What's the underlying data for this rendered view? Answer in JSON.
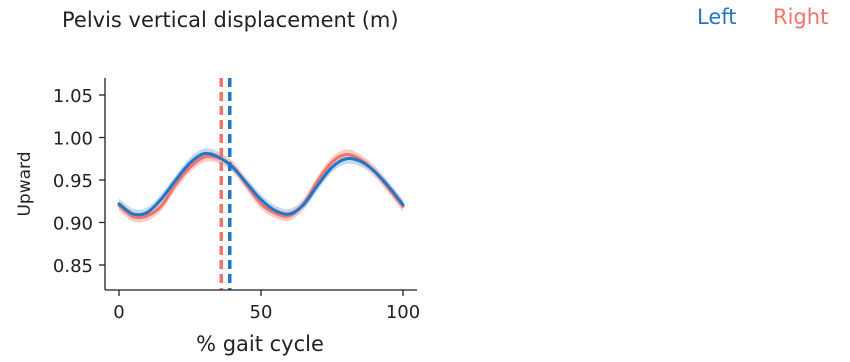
{
  "chart_data": {
    "type": "line",
    "title": "Pelvis vertical displacement (m)",
    "xlabel": "% gait cycle",
    "ylabel": "Upward",
    "xlim": [
      -5,
      105
    ],
    "ylim": [
      0.82,
      1.07
    ],
    "xticks": [
      0,
      50,
      100
    ],
    "xtick_labels": [
      "0",
      "50",
      "100"
    ],
    "yticks": [
      0.85,
      0.9,
      0.95,
      1.0,
      1.05
    ],
    "ytick_labels": [
      "0.85",
      "0.90",
      "0.95",
      "1.00",
      "1.05"
    ],
    "grid": false,
    "legend_position": "top-right",
    "x": [
      0,
      5,
      10,
      15,
      20,
      25,
      30,
      35,
      40,
      45,
      50,
      55,
      60,
      65,
      70,
      75,
      80,
      85,
      90,
      95,
      100
    ],
    "series": [
      {
        "name": "Left",
        "color": "#1f77c8",
        "band_color": "#a9cdee",
        "values": [
          0.922,
          0.91,
          0.912,
          0.928,
          0.95,
          0.97,
          0.981,
          0.977,
          0.965,
          0.946,
          0.927,
          0.914,
          0.91,
          0.921,
          0.944,
          0.965,
          0.975,
          0.972,
          0.96,
          0.942,
          0.921
        ],
        "band": 0.006,
        "event_x": 39
      },
      {
        "name": "Right",
        "color": "#f2726c",
        "band_color": "#f7bcb8",
        "values": [
          0.92,
          0.907,
          0.908,
          0.92,
          0.945,
          0.965,
          0.977,
          0.976,
          0.966,
          0.944,
          0.922,
          0.911,
          0.908,
          0.922,
          0.949,
          0.971,
          0.98,
          0.974,
          0.96,
          0.94,
          0.919
        ],
        "band": 0.006,
        "event_x": 36
      }
    ]
  }
}
